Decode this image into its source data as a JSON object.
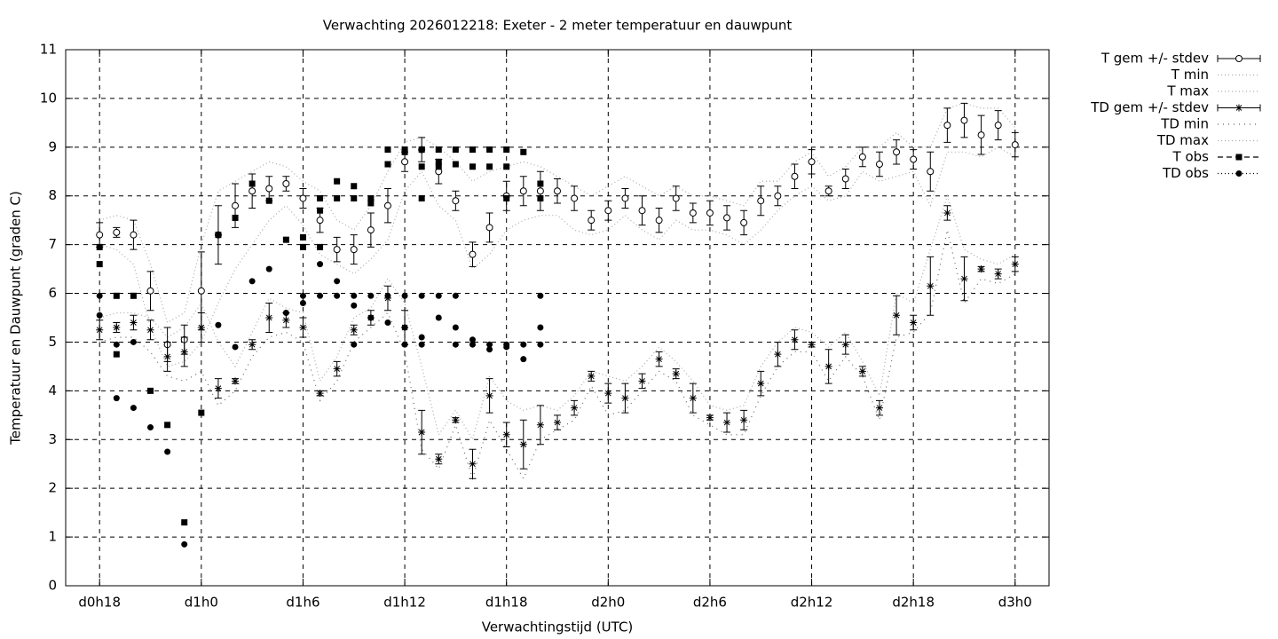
{
  "chart_data": {
    "type": "errorbar",
    "title": "Verwachting 2026012218: Exeter - 2 meter temperatuur en dauwpunt",
    "xlabel": "Verwachtingstijd (UTC)",
    "ylabel": "Temperatuur en Dauwpunt (graden C)",
    "xlim": [
      16,
      74
    ],
    "xticks": [
      {
        "value": 18,
        "label": "d0h18"
      },
      {
        "value": 24,
        "label": "d1h0"
      },
      {
        "value": 30,
        "label": "d1h6"
      },
      {
        "value": 36,
        "label": "d1h12"
      },
      {
        "value": 42,
        "label": "d1h18"
      },
      {
        "value": 48,
        "label": "d2h0"
      },
      {
        "value": 54,
        "label": "d2h6"
      },
      {
        "value": 60,
        "label": "d2h12"
      },
      {
        "value": 66,
        "label": "d2h18"
      },
      {
        "value": 72,
        "label": "d3h0"
      }
    ],
    "ylim": [
      0,
      11
    ],
    "yticks": [
      0,
      1,
      2,
      3,
      4,
      5,
      6,
      7,
      8,
      9,
      10,
      11
    ],
    "grid": true,
    "legend": "outside-right",
    "x": [
      18,
      19,
      20,
      21,
      22,
      23,
      24,
      25,
      26,
      27,
      28,
      29,
      30,
      31,
      32,
      33,
      34,
      35,
      36,
      37,
      38,
      39,
      40,
      41,
      42,
      43,
      44,
      45,
      46,
      47,
      48,
      49,
      50,
      51,
      52,
      53,
      54,
      55,
      56,
      57,
      58,
      59,
      60,
      61,
      62,
      63,
      64,
      65,
      66,
      67,
      68,
      69,
      70,
      71,
      72
    ],
    "series": [
      {
        "name": "T gem +/- stdev",
        "color": "#000000",
        "marker": "circle-open",
        "style": "errorbar",
        "values": [
          7.2,
          7.25,
          7.2,
          6.05,
          4.95,
          5.05,
          6.05,
          7.2,
          7.8,
          8.1,
          8.15,
          8.25,
          7.95,
          7.5,
          6.9,
          6.9,
          7.3,
          7.8,
          8.7,
          8.95,
          8.5,
          7.9,
          6.8,
          7.35,
          8.0,
          8.1,
          8.1,
          8.1,
          7.95,
          7.5,
          7.7,
          7.95,
          7.7,
          7.5,
          7.95,
          7.65,
          7.65,
          7.55,
          7.45,
          7.9,
          8.0,
          8.4,
          8.7,
          8.1,
          8.35,
          8.8,
          8.65,
          8.9,
          8.75,
          8.5,
          9.45,
          9.55,
          9.25,
          9.45,
          9.05
        ],
        "errors": [
          0.25,
          0.1,
          0.3,
          0.4,
          0.35,
          0.3,
          0.8,
          0.6,
          0.45,
          0.35,
          0.25,
          0.15,
          0.2,
          0.25,
          0.25,
          0.3,
          0.35,
          0.35,
          0.2,
          0.25,
          0.25,
          0.2,
          0.25,
          0.3,
          0.3,
          0.3,
          0.4,
          0.25,
          0.25,
          0.2,
          0.2,
          0.2,
          0.3,
          0.25,
          0.25,
          0.2,
          0.25,
          0.25,
          0.25,
          0.3,
          0.2,
          0.25,
          0.25,
          0.1,
          0.2,
          0.2,
          0.25,
          0.25,
          0.2,
          0.4,
          0.35,
          0.35,
          0.4,
          0.3,
          0.25
        ]
      },
      {
        "name": "T min",
        "color": "#aaaaaa",
        "style": "dotted",
        "values": [
          7.0,
          6.9,
          6.6,
          5.3,
          4.5,
          4.6,
          5.0,
          5.8,
          6.5,
          7.0,
          7.5,
          7.8,
          7.4,
          6.8,
          6.6,
          6.4,
          6.7,
          7.1,
          8.1,
          8.5,
          7.8,
          7.5,
          6.5,
          6.8,
          7.3,
          7.5,
          7.6,
          7.6,
          7.3,
          7.2,
          7.3,
          7.6,
          7.3,
          7.1,
          7.5,
          7.3,
          7.3,
          7.2,
          7.0,
          7.3,
          7.7,
          8.0,
          8.2,
          7.9,
          8.0,
          8.5,
          8.3,
          8.4,
          8.5,
          7.8,
          8.9,
          8.9,
          8.8,
          9.0,
          8.8
        ]
      },
      {
        "name": "T max",
        "color": "#aaaaaa",
        "style": "dotted",
        "values": [
          7.5,
          7.6,
          7.5,
          6.6,
          5.4,
          5.6,
          7.0,
          8.1,
          8.3,
          8.5,
          8.7,
          8.6,
          8.3,
          8.1,
          7.5,
          7.3,
          7.8,
          8.5,
          9.1,
          9.2,
          9.0,
          8.7,
          8.3,
          8.5,
          8.6,
          8.7,
          8.6,
          8.4,
          8.2,
          8.0,
          8.2,
          8.4,
          8.2,
          8.0,
          8.2,
          8.0,
          8.0,
          7.9,
          7.8,
          8.3,
          8.3,
          8.7,
          8.9,
          8.4,
          8.6,
          9.0,
          9.0,
          9.3,
          9.0,
          9.0,
          9.8,
          9.9,
          9.8,
          9.8,
          9.4
        ]
      },
      {
        "name": "TD gem +/- stdev",
        "color": "#000000",
        "marker": "star",
        "style": "errorbar",
        "values": [
          5.25,
          5.3,
          5.4,
          5.25,
          4.7,
          4.8,
          5.3,
          4.05,
          4.2,
          4.95,
          5.5,
          5.45,
          5.3,
          3.95,
          4.45,
          5.25,
          5.5,
          5.9,
          5.3,
          3.15,
          2.6,
          3.4,
          2.5,
          3.9,
          3.1,
          2.9,
          3.3,
          3.35,
          3.65,
          4.3,
          3.95,
          3.85,
          4.2,
          4.65,
          4.35,
          3.85,
          3.45,
          3.35,
          3.4,
          4.15,
          4.75,
          5.05,
          4.95,
          4.5,
          4.95,
          4.4,
          3.65,
          5.55,
          5.4,
          6.15,
          7.65,
          6.3,
          6.5,
          6.4,
          6.6
        ],
        "errors": [
          0.2,
          0.1,
          0.15,
          0.2,
          0.3,
          0.3,
          0.3,
          0.2,
          0.05,
          0.1,
          0.3,
          0.15,
          0.2,
          0.05,
          0.15,
          0.1,
          0.15,
          0.25,
          0.35,
          0.45,
          0.1,
          0.05,
          0.3,
          0.35,
          0.25,
          0.5,
          0.4,
          0.15,
          0.15,
          0.1,
          0.2,
          0.3,
          0.15,
          0.15,
          0.1,
          0.3,
          0.05,
          0.2,
          0.2,
          0.25,
          0.25,
          0.2,
          0.05,
          0.35,
          0.2,
          0.1,
          0.15,
          0.4,
          0.15,
          0.6,
          0.15,
          0.45,
          0.05,
          0.1,
          0.15
        ]
      },
      {
        "name": "TD min",
        "color": "#666666",
        "style": "dotted-wide",
        "values": [
          5.0,
          5.1,
          5.1,
          4.8,
          4.3,
          4.2,
          4.4,
          3.7,
          4.0,
          4.7,
          5.1,
          5.2,
          5.0,
          3.8,
          4.2,
          5.0,
          5.3,
          5.6,
          4.8,
          2.8,
          2.4,
          3.3,
          2.2,
          3.4,
          2.8,
          2.2,
          3.0,
          3.2,
          3.4,
          4.1,
          3.5,
          3.6,
          4.0,
          4.4,
          4.2,
          3.5,
          3.3,
          3.1,
          3.1,
          3.9,
          4.5,
          4.8,
          4.8,
          4.2,
          4.7,
          4.3,
          3.4,
          5.1,
          5.2,
          5.6,
          7.3,
          5.8,
          6.3,
          6.2,
          6.4
        ]
      },
      {
        "name": "TD max",
        "color": "#aaaaaa",
        "style": "dotted",
        "values": [
          5.5,
          5.6,
          5.6,
          5.5,
          5.1,
          5.3,
          5.8,
          5.0,
          4.5,
          5.2,
          5.9,
          5.7,
          5.6,
          4.2,
          4.7,
          5.5,
          5.7,
          6.3,
          5.8,
          4.5,
          3.1,
          3.6,
          3.0,
          4.3,
          3.8,
          3.6,
          3.7,
          3.6,
          3.9,
          4.4,
          4.3,
          4.2,
          4.5,
          4.9,
          4.6,
          4.2,
          3.7,
          3.6,
          3.7,
          4.5,
          5.0,
          5.3,
          5.2,
          4.9,
          5.2,
          4.6,
          3.9,
          6.0,
          5.8,
          6.9,
          8.0,
          6.9,
          6.7,
          6.6,
          6.8
        ]
      },
      {
        "name": "T obs",
        "color": "#000000",
        "marker": "square",
        "style": "points-dashed",
        "x": [
          18,
          18,
          19,
          19,
          20,
          21,
          22,
          23,
          24,
          25,
          26,
          27,
          28,
          29,
          30,
          30,
          31,
          31,
          31,
          32,
          32,
          33,
          33,
          34,
          34,
          35,
          35,
          36,
          36,
          37,
          37,
          37,
          38,
          38,
          38,
          39,
          39,
          40,
          40,
          41,
          41,
          42,
          42,
          42,
          43,
          44,
          44
        ],
        "values": [
          6.95,
          6.6,
          5.95,
          4.75,
          5.95,
          4.0,
          3.3,
          1.3,
          3.55,
          7.2,
          7.55,
          8.25,
          7.9,
          7.1,
          7.15,
          6.95,
          7.95,
          7.7,
          6.95,
          8.3,
          7.95,
          8.2,
          7.95,
          7.95,
          7.85,
          8.95,
          8.65,
          8.95,
          8.9,
          8.95,
          8.6,
          7.95,
          8.95,
          8.7,
          8.6,
          8.95,
          8.65,
          8.95,
          8.6,
          8.95,
          8.6,
          8.95,
          8.6,
          7.95,
          8.9,
          8.25,
          7.95
        ]
      },
      {
        "name": "TD obs",
        "color": "#000000",
        "marker": "circle",
        "style": "points-dotted",
        "x": [
          18,
          18,
          19,
          19,
          20,
          20,
          21,
          22,
          23,
          25,
          26,
          27,
          28,
          29,
          30,
          30,
          31,
          31,
          32,
          32,
          33,
          33,
          33,
          34,
          34,
          35,
          35,
          36,
          36,
          36,
          37,
          37,
          37,
          38,
          38,
          39,
          39,
          39,
          40,
          40,
          41,
          41,
          42,
          42,
          43,
          43,
          44,
          44,
          44
        ],
        "values": [
          5.95,
          5.55,
          4.95,
          3.85,
          5.0,
          3.65,
          3.25,
          2.75,
          0.85,
          5.35,
          4.9,
          6.25,
          6.5,
          5.6,
          5.95,
          5.8,
          6.6,
          5.95,
          6.25,
          5.95,
          5.95,
          5.75,
          4.95,
          5.95,
          5.5,
          5.95,
          5.4,
          5.95,
          5.3,
          4.95,
          5.95,
          5.1,
          4.95,
          5.95,
          5.5,
          5.95,
          5.3,
          4.95,
          5.05,
          4.95,
          4.95,
          4.85,
          4.95,
          4.9,
          4.95,
          4.65,
          5.95,
          5.3,
          4.95
        ]
      }
    ]
  }
}
